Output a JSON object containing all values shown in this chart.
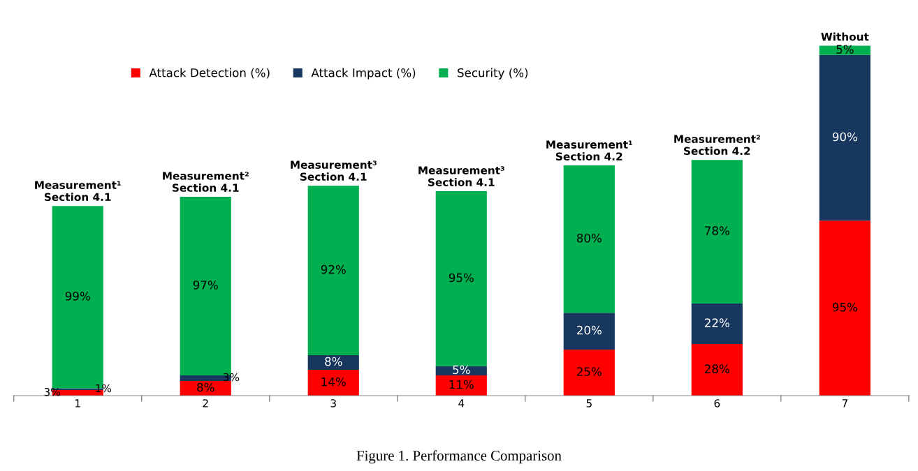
{
  "chart_data": {
    "type": "bar",
    "stacked": true,
    "categories": [
      "1",
      "2",
      "3",
      "4",
      "5",
      "6",
      "7"
    ],
    "series": [
      {
        "name": "Attack Detection (%)",
        "color": "#ff0000",
        "values": [
          3,
          8,
          14,
          11,
          25,
          28,
          95
        ],
        "value_labels": [
          "3%",
          "8%",
          "14%",
          "11%",
          "25%",
          "28%",
          "95%"
        ]
      },
      {
        "name": "Attack Impact (%)",
        "color": "#17375e",
        "values": [
          1,
          3,
          8,
          5,
          20,
          22,
          90
        ],
        "value_labels": [
          "1%",
          "3%",
          "8%",
          "5%",
          "20%",
          "22%",
          "90%"
        ]
      },
      {
        "name": "Security (%)",
        "color": "#00b050",
        "values": [
          99,
          97,
          92,
          95,
          80,
          78,
          5
        ],
        "value_labels": [
          "99%",
          "97%",
          "92%",
          "95%",
          "80%",
          "78%",
          "5%"
        ]
      }
    ],
    "tick_labels": "x",
    "grid": false,
    "legend": "top left",
    "annotations": [
      {
        "text": "Measurement¹\nSection 4.1",
        "x": "1",
        "y": 103
      },
      {
        "text": "Measurement²\nSection 4.1",
        "x": "2",
        "y": 108
      },
      {
        "text": "Measurement³\nSection 4.1",
        "x": "3",
        "y": 114
      },
      {
        "text": "Measurement³\nSection 4.1",
        "x": "4",
        "y": 111
      },
      {
        "text": "Measurement¹\nSection 4.2",
        "x": "5",
        "y": 125
      },
      {
        "text": "Measurement²\nSection 4.2",
        "x": "6",
        "y": 128
      },
      {
        "text": "Without",
        "x": "7",
        "y": 190
      },
      "Figure 1. Performance Comparison"
    ]
  }
}
